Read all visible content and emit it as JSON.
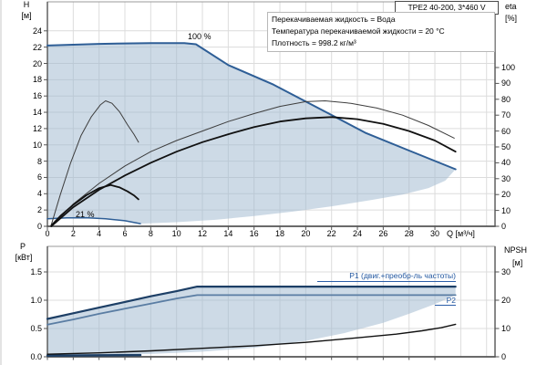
{
  "title": "TPE2 40-200, 3*460 V",
  "info_box": {
    "line1": "Перекачиваемая жидкость = Вода",
    "line2": "Температура перекачиваемой жидкости = 20 °C",
    "line3": "Плотность = 998.2 кг/м³"
  },
  "labels": {
    "h_axis": "H",
    "h_unit": "[м]",
    "eta_axis": "eta",
    "eta_unit": "[%]",
    "p_axis": "P",
    "p_unit": "[кВт]",
    "npsh_axis": "NPSH",
    "npsh_unit": "[м]",
    "q_axis": "Q [м³/ч]",
    "curve_100": "100 %",
    "curve_21": "21 %",
    "p1": "P1 (двиг.+преобр-ль частоты)",
    "p2": "P2"
  },
  "colors": {
    "fill": "rgba(160,184,208,0.52)",
    "blue_curve": "#2e5e96",
    "p1_curve": "#1d3f66",
    "p2_curve": "#5a7da3",
    "black_curve": "#111111",
    "thin_curve": "#3d3d3d",
    "label_blue": "#2257a0",
    "grid": "#dcdcdc",
    "border": "#9a9a9a",
    "axis": "#555555"
  },
  "chart_data": [
    {
      "type": "line",
      "title": "QH curves with efficiency (speed range 21%–100%)",
      "xlabel": "Q [м³/ч]",
      "x_range": [
        0,
        34.7
      ],
      "x_ticks": [
        0,
        2,
        4,
        6,
        8,
        10,
        12,
        14,
        16,
        18,
        20,
        22,
        24,
        26,
        28,
        30
      ],
      "grid": true,
      "y_left": {
        "label": "H [м]",
        "range": [
          0,
          27.5
        ],
        "ticks": [
          0,
          2,
          4,
          6,
          8,
          10,
          12,
          14,
          16,
          18,
          20,
          22,
          24
        ]
      },
      "y_right": {
        "label": "eta [%]",
        "range": [
          0,
          141
        ],
        "ticks": [
          0,
          10,
          20,
          30,
          40,
          50,
          60,
          70,
          80,
          90,
          100
        ]
      },
      "series": [
        {
          "name": "qh-100",
          "label": "100 %",
          "axis": "H",
          "color": "#2e5e96",
          "width": 2,
          "points": [
            [
              0,
              22.2
            ],
            [
              4,
              22.4
            ],
            [
              8,
              22.5
            ],
            [
              10.6,
              22.5
            ],
            [
              11.5,
              22.35
            ],
            [
              14,
              19.8
            ],
            [
              17.5,
              17.4
            ],
            [
              22.2,
              13.5
            ],
            [
              24.6,
              11.5
            ],
            [
              28,
              9.3
            ],
            [
              31.6,
              7.0
            ]
          ]
        },
        {
          "name": "qh-21",
          "label": "21 %",
          "axis": "H",
          "color": "#2e5e96",
          "width": 1.5,
          "points": [
            [
              0,
              0.92
            ],
            [
              1.5,
              1.04
            ],
            [
              3,
              1.05
            ],
            [
              4.5,
              0.92
            ],
            [
              6,
              0.68
            ],
            [
              7.2,
              0.33
            ]
          ]
        },
        {
          "name": "eta-pump-100",
          "axis": "eta",
          "color": "#3d3d3d",
          "width": 1,
          "points": [
            [
              0.3,
              0
            ],
            [
              2,
              14
            ],
            [
              4,
              27
            ],
            [
              6,
              38
            ],
            [
              8,
              47
            ],
            [
              10,
              54
            ],
            [
              12,
              60
            ],
            [
              14,
              66
            ],
            [
              16,
              71
            ],
            [
              18,
              75.5
            ],
            [
              20,
              78.5
            ],
            [
              21.5,
              79
            ],
            [
              23.5,
              77.5
            ],
            [
              25.5,
              74.5
            ],
            [
              27.5,
              70
            ],
            [
              29.5,
              63.5
            ],
            [
              31.5,
              55.5
            ]
          ]
        },
        {
          "name": "eta-total-100",
          "axis": "eta",
          "color": "#111111",
          "width": 1.8,
          "points": [
            [
              0.3,
              0
            ],
            [
              2,
              12
            ],
            [
              4,
              23
            ],
            [
              6,
              32
            ],
            [
              8,
              40
            ],
            [
              10,
              47
            ],
            [
              12,
              53
            ],
            [
              14,
              58
            ],
            [
              16,
              62.5
            ],
            [
              18,
              66
            ],
            [
              20,
              68
            ],
            [
              22,
              68.8
            ],
            [
              24,
              67.5
            ],
            [
              26,
              64.5
            ],
            [
              28,
              60
            ],
            [
              30,
              54
            ],
            [
              31.6,
              47
            ]
          ]
        },
        {
          "name": "eta-pump-21",
          "axis": "eta",
          "color": "#3d3d3d",
          "width": 1,
          "points": [
            [
              0.3,
              1
            ],
            [
              1,
              20
            ],
            [
              1.8,
              40
            ],
            [
              2.6,
              57
            ],
            [
              3.4,
              69
            ],
            [
              4.1,
              76.5
            ],
            [
              4.5,
              79
            ],
            [
              5,
              77.5
            ],
            [
              5.6,
              72
            ],
            [
              6.2,
              64
            ],
            [
              6.7,
              58
            ],
            [
              7.05,
              53
            ]
          ]
        },
        {
          "name": "eta-total-21",
          "axis": "eta",
          "color": "#111111",
          "width": 1.8,
          "points": [
            [
              0.3,
              0.5
            ],
            [
              1,
              6.5
            ],
            [
              2,
              13.5
            ],
            [
              3,
              19.5
            ],
            [
              4,
              24
            ],
            [
              4.9,
              26
            ],
            [
              5.6,
              24.5
            ],
            [
              6.2,
              22
            ],
            [
              6.7,
              19.5
            ],
            [
              7.05,
              17
            ]
          ]
        }
      ],
      "envelope": {
        "upper": "qh-100",
        "lower_start": "qh-21",
        "lower_boundary": [
          [
            7.2,
            0.33
          ],
          [
            10,
            0.5
          ],
          [
            13,
            0.8
          ],
          [
            16,
            1.25
          ],
          [
            19,
            1.8
          ],
          [
            22,
            2.45
          ],
          [
            25,
            3.2
          ],
          [
            27.5,
            3.9
          ],
          [
            29.5,
            4.7
          ],
          [
            30.8,
            5.6
          ],
          [
            31.6,
            7.0
          ]
        ]
      }
    },
    {
      "type": "line",
      "title": "Power P1/P2 and NPSH",
      "x_range": [
        0,
        34.7
      ],
      "grid": true,
      "y_left": {
        "label": "P [кВт]",
        "range": [
          0,
          1.95
        ],
        "ticks": [
          "0.0",
          "0.5",
          "1.0",
          "1.5"
        ]
      },
      "y_right": {
        "label": "NPSH [м]",
        "range": [
          0,
          39
        ],
        "ticks": [
          0,
          10,
          20,
          30
        ]
      },
      "series": [
        {
          "name": "p1",
          "label": "P1 (двиг.+преобр-ль частоты)",
          "axis": "P",
          "color": "#1d3f66",
          "width": 2.2,
          "points": [
            [
              0,
              0.67
            ],
            [
              2,
              0.77
            ],
            [
              4,
              0.87
            ],
            [
              6,
              0.97
            ],
            [
              8,
              1.07
            ],
            [
              10,
              1.16
            ],
            [
              11.6,
              1.24
            ],
            [
              31.6,
              1.24
            ]
          ]
        },
        {
          "name": "p2",
          "label": "P2",
          "axis": "P",
          "color": "#5a7da3",
          "width": 1.8,
          "points": [
            [
              0,
              0.57
            ],
            [
              2,
              0.66
            ],
            [
              4,
              0.76
            ],
            [
              6,
              0.85
            ],
            [
              8,
              0.94
            ],
            [
              10,
              1.03
            ],
            [
              11.6,
              1.09
            ],
            [
              31.6,
              1.09
            ]
          ]
        },
        {
          "name": "p-21",
          "axis": "P",
          "color": "#1d3f66",
          "width": 2.5,
          "points": [
            [
              0,
              0.02
            ],
            [
              7.2,
              0.03
            ]
          ]
        },
        {
          "name": "npsh",
          "axis": "NPSH",
          "color": "#111111",
          "width": 1.4,
          "points": [
            [
              0,
              0.9
            ],
            [
              4,
              1.4
            ],
            [
              8,
              2.1
            ],
            [
              12,
              3.0
            ],
            [
              16,
              3.9
            ],
            [
              20,
              5.1
            ],
            [
              24,
              6.7
            ],
            [
              27,
              8.0
            ],
            [
              29,
              9.2
            ],
            [
              30.5,
              10.3
            ],
            [
              31.6,
              11.5
            ]
          ]
        }
      ],
      "envelope": {
        "upper": "p1",
        "lower_boundary": [
          [
            0,
            0.02
          ],
          [
            4,
            0.03
          ],
          [
            8,
            0.05
          ],
          [
            12,
            0.09
          ],
          [
            16,
            0.16
          ],
          [
            20,
            0.28
          ],
          [
            23,
            0.42
          ],
          [
            26,
            0.6
          ],
          [
            28,
            0.76
          ],
          [
            30,
            0.93
          ],
          [
            31.6,
            1.09
          ]
        ]
      }
    }
  ]
}
